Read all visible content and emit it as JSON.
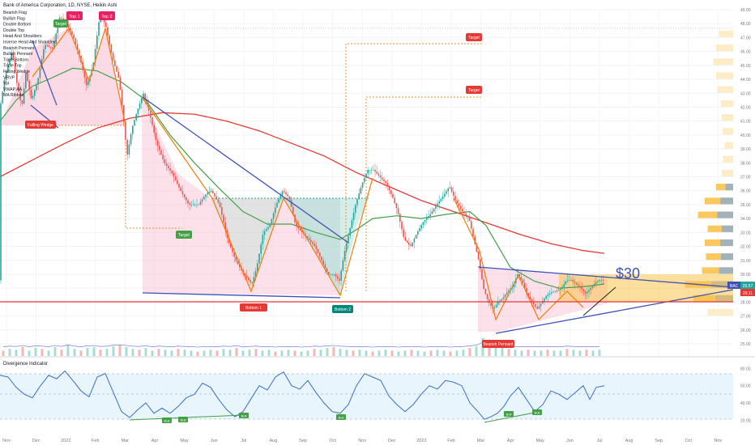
{
  "header": {
    "symbol_line": "Bank of America Corporation, 1D, NYSE, Heikin Ashi"
  },
  "indicator_list": [
    "Bearish Flag",
    "Bullish Flag",
    "Double Bottom",
    "Double Top",
    "Head And Shoulders",
    "Inverse Head And Shoulders",
    "Bearish Pennant",
    "Bullish Pennant",
    "Triple Bottom",
    "Triple Top",
    "Falling Wedge",
    "VRVP",
    "Vol",
    "VWAP AA",
    "MA Ribbon"
  ],
  "annotations": {
    "top1": "Top 1",
    "top2": "Top 2",
    "target": "Target",
    "falling_wedge": "Falling Wedge",
    "bottom1": "Bottom 1",
    "bottom2": "Bottom 2",
    "bearish_pennant": "Bearish Pennant",
    "price_note": "$30",
    "bull": "Bull"
  },
  "price_badges": {
    "symbol": "BAC",
    "last": "29.57",
    "second": "29.11"
  },
  "oscillator": {
    "title": "Divergence Indicator",
    "ticks": [
      "80.00",
      "60.00",
      "40.00",
      "20.00"
    ]
  },
  "colors": {
    "up": "#26a69a",
    "down": "#ef5350",
    "ma_long": "#e53935",
    "ma_mid": "#43a047",
    "trend": "#3f51b5",
    "zigzag": "#f57c00",
    "target": "#f0932b"
  },
  "chart_data": {
    "type": "candlestick",
    "y_axis": {
      "min": 25,
      "max": 49,
      "ticks": [
        "25.00",
        "26.00",
        "27.00",
        "28.00",
        "29.00",
        "30.00",
        "31.00",
        "32.00",
        "33.00",
        "34.00",
        "35.00",
        "36.00",
        "37.00",
        "38.00",
        "39.00",
        "40.00",
        "41.00",
        "42.00",
        "43.00",
        "44.00",
        "45.00",
        "46.00",
        "47.00",
        "48.00",
        "49.00"
      ]
    },
    "x_axis": {
      "ticks": [
        "Nov",
        "Dec",
        "2022",
        "Feb",
        "Mar",
        "Apr",
        "May",
        "Jun",
        "Jul",
        "Aug",
        "Sep",
        "Oct",
        "Nov",
        "Dec",
        "2023",
        "Feb",
        "Mar",
        "Apr",
        "May",
        "Jun",
        "Jul",
        "Aug",
        "Sep",
        "Oct",
        "Nov"
      ]
    },
    "price_path": [
      [
        0,
        41.5
      ],
      [
        8,
        44.5
      ],
      [
        16,
        46.0
      ],
      [
        21,
        44.0
      ],
      [
        28,
        42.0
      ],
      [
        33,
        44.5
      ],
      [
        40,
        42.5
      ],
      [
        48,
        44.0
      ],
      [
        56,
        46.5
      ],
      [
        66,
        46.2
      ],
      [
        75,
        48.5
      ],
      [
        83,
        48.0
      ],
      [
        92,
        47.0
      ],
      [
        100,
        45.5
      ],
      [
        108,
        43.5
      ],
      [
        116,
        45.0
      ],
      [
        124,
        48.5
      ],
      [
        131,
        48.0
      ],
      [
        140,
        45.5
      ],
      [
        148,
        44.0
      ],
      [
        153,
        41.5
      ],
      [
        158,
        38.5
      ],
      [
        164,
        40.5
      ],
      [
        172,
        42.0
      ],
      [
        178,
        43.0
      ],
      [
        186,
        41.5
      ],
      [
        194,
        39.5
      ],
      [
        204,
        38.0
      ],
      [
        214,
        37.2
      ],
      [
        224,
        36.0
      ],
      [
        234,
        35.0
      ],
      [
        246,
        35.0
      ],
      [
        256,
        35.8
      ],
      [
        262,
        36.0
      ],
      [
        272,
        35.0
      ],
      [
        282,
        32.5
      ],
      [
        292,
        31.0
      ],
      [
        302,
        30.0
      ],
      [
        312,
        29.3
      ],
      [
        318,
        30.5
      ],
      [
        326,
        33.0
      ],
      [
        334,
        33.5
      ],
      [
        342,
        35.0
      ],
      [
        350,
        36.0
      ],
      [
        358,
        35.5
      ],
      [
        366,
        33.5
      ],
      [
        374,
        33.0
      ],
      [
        382,
        32.5
      ],
      [
        390,
        32.0
      ],
      [
        398,
        31.0
      ],
      [
        406,
        30.0
      ],
      [
        414,
        30.0
      ],
      [
        420,
        29.5
      ],
      [
        426,
        31.5
      ],
      [
        432,
        33.0
      ],
      [
        440,
        35.0
      ],
      [
        448,
        36.5
      ],
      [
        455,
        37.5
      ],
      [
        462,
        37.5
      ],
      [
        470,
        37.0
      ],
      [
        478,
        36.5
      ],
      [
        486,
        35.5
      ],
      [
        492,
        34.5
      ],
      [
        500,
        32.5
      ],
      [
        508,
        32.0
      ],
      [
        516,
        33.0
      ],
      [
        524,
        33.8
      ],
      [
        532,
        34.3
      ],
      [
        540,
        35.0
      ],
      [
        548,
        35.6
      ],
      [
        556,
        36.3
      ],
      [
        564,
        35.2
      ],
      [
        572,
        34.5
      ],
      [
        580,
        34.0
      ],
      [
        586,
        32.5
      ],
      [
        592,
        31.0
      ],
      [
        598,
        29.0
      ],
      [
        604,
        28.0
      ],
      [
        610,
        27.5
      ],
      [
        616,
        28.0
      ],
      [
        622,
        28.3
      ],
      [
        628,
        28.8
      ],
      [
        634,
        29.1
      ],
      [
        640,
        30.0
      ],
      [
        646,
        29.5
      ],
      [
        652,
        28.5
      ],
      [
        658,
        28.0
      ],
      [
        664,
        27.5
      ],
      [
        670,
        28.0
      ],
      [
        676,
        28.5
      ],
      [
        682,
        28.7
      ],
      [
        688,
        28.8
      ],
      [
        694,
        29.0
      ],
      [
        700,
        29.5
      ],
      [
        706,
        29.6
      ],
      [
        712,
        29.3
      ],
      [
        718,
        29.0
      ],
      [
        724,
        28.6
      ],
      [
        730,
        29.0
      ],
      [
        736,
        29.4
      ],
      [
        742,
        29.6
      ],
      [
        746,
        29.57
      ]
    ],
    "ma_long_path": [
      [
        0,
        37.0
      ],
      [
        40,
        38.2
      ],
      [
        80,
        39.4
      ],
      [
        120,
        40.5
      ],
      [
        160,
        41.2
      ],
      [
        200,
        41.6
      ],
      [
        240,
        41.5
      ],
      [
        280,
        41.0
      ],
      [
        320,
        40.3
      ],
      [
        360,
        39.4
      ],
      [
        400,
        38.5
      ],
      [
        440,
        37.3
      ],
      [
        480,
        36.3
      ],
      [
        520,
        35.3
      ],
      [
        560,
        34.5
      ],
      [
        600,
        33.7
      ],
      [
        640,
        32.9
      ],
      [
        680,
        32.2
      ],
      [
        720,
        31.7
      ],
      [
        746,
        31.5
      ]
    ],
    "ma_mid_path": [
      [
        0,
        41.0
      ],
      [
        20,
        42.5
      ],
      [
        40,
        43.5
      ],
      [
        60,
        44.0
      ],
      [
        90,
        44.8
      ],
      [
        120,
        44.6
      ],
      [
        150,
        43.8
      ],
      [
        180,
        42.5
      ],
      [
        210,
        40.0
      ],
      [
        240,
        38.0
      ],
      [
        270,
        36.2
      ],
      [
        300,
        34.5
      ],
      [
        330,
        33.6
      ],
      [
        360,
        33.6
      ],
      [
        390,
        33.0
      ],
      [
        420,
        32.5
      ],
      [
        440,
        33.2
      ],
      [
        460,
        34.0
      ],
      [
        490,
        34.2
      ],
      [
        520,
        34.0
      ],
      [
        550,
        34.3
      ],
      [
        580,
        34.5
      ],
      [
        600,
        33.5
      ],
      [
        630,
        30.5
      ],
      [
        660,
        29.5
      ],
      [
        690,
        29.0
      ],
      [
        720,
        29.1
      ],
      [
        746,
        29.3
      ]
    ],
    "volume": [
      [
        4,
        0.3
      ],
      [
        12,
        0.4
      ],
      [
        20,
        0.35
      ],
      [
        28,
        0.5
      ],
      [
        36,
        0.3
      ],
      [
        44,
        0.45
      ],
      [
        52,
        0.4
      ],
      [
        60,
        0.3
      ],
      [
        68,
        0.5
      ],
      [
        76,
        0.35
      ],
      [
        84,
        0.6
      ],
      [
        92,
        0.4
      ],
      [
        100,
        0.3
      ],
      [
        108,
        0.45
      ],
      [
        116,
        0.5
      ],
      [
        124,
        0.35
      ],
      [
        132,
        0.4
      ],
      [
        140,
        0.55
      ],
      [
        148,
        0.6
      ],
      [
        156,
        0.5
      ],
      [
        164,
        0.4
      ],
      [
        172,
        0.35
      ],
      [
        180,
        0.45
      ],
      [
        188,
        0.3
      ],
      [
        196,
        0.4
      ],
      [
        204,
        0.35
      ],
      [
        212,
        0.3
      ],
      [
        220,
        0.4
      ],
      [
        228,
        0.35
      ],
      [
        236,
        0.3
      ],
      [
        244,
        0.25
      ],
      [
        252,
        0.3
      ],
      [
        260,
        0.35
      ],
      [
        268,
        0.3
      ],
      [
        276,
        0.4
      ],
      [
        284,
        0.35
      ],
      [
        292,
        0.45
      ],
      [
        300,
        0.3
      ],
      [
        308,
        0.35
      ],
      [
        316,
        0.4
      ],
      [
        324,
        0.3
      ],
      [
        332,
        0.35
      ],
      [
        340,
        0.25
      ],
      [
        348,
        0.3
      ],
      [
        356,
        0.35
      ],
      [
        364,
        0.3
      ],
      [
        372,
        0.25
      ],
      [
        380,
        0.3
      ],
      [
        388,
        0.4
      ],
      [
        396,
        0.35
      ],
      [
        404,
        0.45
      ],
      [
        412,
        0.5
      ],
      [
        420,
        0.4
      ],
      [
        428,
        0.35
      ],
      [
        436,
        0.3
      ],
      [
        444,
        0.35
      ],
      [
        452,
        0.3
      ],
      [
        460,
        0.25
      ],
      [
        468,
        0.3
      ],
      [
        476,
        0.35
      ],
      [
        484,
        0.3
      ],
      [
        492,
        0.25
      ],
      [
        500,
        0.3
      ],
      [
        508,
        0.35
      ],
      [
        516,
        0.3
      ],
      [
        524,
        0.25
      ],
      [
        532,
        0.3
      ],
      [
        540,
        0.35
      ],
      [
        548,
        0.3
      ],
      [
        556,
        0.25
      ],
      [
        564,
        0.3
      ],
      [
        572,
        0.35
      ],
      [
        580,
        0.45
      ],
      [
        588,
        0.55
      ],
      [
        596,
        1.0
      ],
      [
        604,
        0.9
      ],
      [
        612,
        0.6
      ],
      [
        620,
        0.45
      ],
      [
        628,
        0.4
      ],
      [
        636,
        0.35
      ],
      [
        644,
        0.3
      ],
      [
        652,
        0.35
      ],
      [
        660,
        0.3
      ],
      [
        668,
        0.3
      ],
      [
        676,
        0.35
      ],
      [
        684,
        0.3
      ],
      [
        692,
        0.3
      ],
      [
        700,
        0.4
      ],
      [
        708,
        0.35
      ],
      [
        716,
        0.3
      ],
      [
        724,
        0.35
      ],
      [
        732,
        0.3
      ],
      [
        740,
        0.35
      ]
    ],
    "oscillator_path": [
      [
        0,
        72
      ],
      [
        10,
        70
      ],
      [
        20,
        58
      ],
      [
        30,
        50
      ],
      [
        40,
        46
      ],
      [
        50,
        60
      ],
      [
        60,
        72
      ],
      [
        70,
        68
      ],
      [
        80,
        77
      ],
      [
        90,
        66
      ],
      [
        100,
        54
      ],
      [
        110,
        47
      ],
      [
        120,
        70
      ],
      [
        130,
        74
      ],
      [
        140,
        52
      ],
      [
        150,
        30
      ],
      [
        160,
        23
      ],
      [
        170,
        32
      ],
      [
        180,
        40
      ],
      [
        190,
        28
      ],
      [
        200,
        34
      ],
      [
        210,
        28
      ],
      [
        220,
        36
      ],
      [
        230,
        46
      ],
      [
        240,
        50
      ],
      [
        250,
        63
      ],
      [
        260,
        58
      ],
      [
        270,
        44
      ],
      [
        280,
        32
      ],
      [
        290,
        24
      ],
      [
        300,
        30
      ],
      [
        310,
        45
      ],
      [
        320,
        60
      ],
      [
        330,
        55
      ],
      [
        340,
        70
      ],
      [
        350,
        76
      ],
      [
        360,
        60
      ],
      [
        370,
        56
      ],
      [
        380,
        66
      ],
      [
        390,
        52
      ],
      [
        400,
        40
      ],
      [
        410,
        30
      ],
      [
        420,
        28
      ],
      [
        430,
        38
      ],
      [
        440,
        60
      ],
      [
        450,
        74
      ],
      [
        460,
        70
      ],
      [
        470,
        66
      ],
      [
        480,
        48
      ],
      [
        490,
        38
      ],
      [
        500,
        30
      ],
      [
        510,
        38
      ],
      [
        520,
        50
      ],
      [
        530,
        60
      ],
      [
        540,
        56
      ],
      [
        550,
        66
      ],
      [
        560,
        64
      ],
      [
        570,
        60
      ],
      [
        580,
        40
      ],
      [
        590,
        30
      ],
      [
        598,
        21
      ],
      [
        606,
        24
      ],
      [
        614,
        28
      ],
      [
        622,
        36
      ],
      [
        630,
        48
      ],
      [
        640,
        58
      ],
      [
        650,
        44
      ],
      [
        660,
        30
      ],
      [
        670,
        38
      ],
      [
        680,
        54
      ],
      [
        690,
        50
      ],
      [
        700,
        44
      ],
      [
        710,
        52
      ],
      [
        720,
        60
      ],
      [
        728,
        44
      ],
      [
        736,
        58
      ],
      [
        746,
        60
      ]
    ]
  }
}
